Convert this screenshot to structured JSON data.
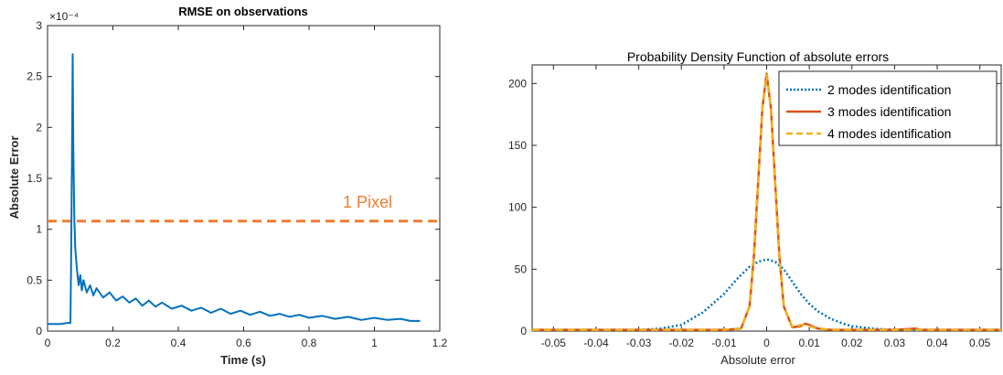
{
  "chart_data": [
    {
      "type": "line",
      "title": "RMSE on observations",
      "xlabel": "Time (s)",
      "ylabel": "Absolute Error",
      "y_exponent_label": "×10⁻⁴",
      "xlim": [
        0,
        1.2
      ],
      "ylim": [
        0,
        3
      ],
      "x_ticks": [
        "0",
        "0.2",
        "0.4",
        "0.6",
        "0.8",
        "1",
        "1.2"
      ],
      "y_ticks": [
        "0",
        "0.5",
        "1",
        "1.5",
        "2",
        "2.5",
        "3"
      ],
      "grid": false,
      "series": [
        {
          "color": "#0072bd",
          "style": "solid",
          "points": [
            [
              0.0,
              0.07
            ],
            [
              0.02,
              0.07
            ],
            [
              0.04,
              0.07
            ],
            [
              0.06,
              0.08
            ],
            [
              0.07,
              0.08
            ],
            [
              0.072,
              0.6
            ],
            [
              0.075,
              1.8
            ],
            [
              0.077,
              2.72
            ],
            [
              0.079,
              1.8
            ],
            [
              0.082,
              1.1
            ],
            [
              0.085,
              0.8
            ],
            [
              0.09,
              0.6
            ],
            [
              0.095,
              0.45
            ],
            [
              0.1,
              0.55
            ],
            [
              0.105,
              0.4
            ],
            [
              0.11,
              0.5
            ],
            [
              0.12,
              0.38
            ],
            [
              0.13,
              0.45
            ],
            [
              0.14,
              0.35
            ],
            [
              0.15,
              0.42
            ],
            [
              0.17,
              0.33
            ],
            [
              0.19,
              0.38
            ],
            [
              0.21,
              0.3
            ],
            [
              0.23,
              0.34
            ],
            [
              0.25,
              0.28
            ],
            [
              0.27,
              0.32
            ],
            [
              0.29,
              0.25
            ],
            [
              0.31,
              0.3
            ],
            [
              0.33,
              0.24
            ],
            [
              0.35,
              0.28
            ],
            [
              0.38,
              0.22
            ],
            [
              0.41,
              0.25
            ],
            [
              0.44,
              0.2
            ],
            [
              0.47,
              0.23
            ],
            [
              0.5,
              0.18
            ],
            [
              0.53,
              0.22
            ],
            [
              0.56,
              0.17
            ],
            [
              0.59,
              0.2
            ],
            [
              0.62,
              0.16
            ],
            [
              0.65,
              0.19
            ],
            [
              0.68,
              0.15
            ],
            [
              0.71,
              0.17
            ],
            [
              0.74,
              0.14
            ],
            [
              0.77,
              0.16
            ],
            [
              0.8,
              0.13
            ],
            [
              0.84,
              0.15
            ],
            [
              0.88,
              0.12
            ],
            [
              0.92,
              0.14
            ],
            [
              0.96,
              0.11
            ],
            [
              1.0,
              0.13
            ],
            [
              1.04,
              0.11
            ],
            [
              1.08,
              0.12
            ],
            [
              1.11,
              0.1
            ],
            [
              1.14,
              0.1
            ]
          ]
        }
      ],
      "reference_line": {
        "y": 1.08,
        "label": "1 Pixel",
        "color": "#ed7d31",
        "style": "dashed"
      }
    },
    {
      "type": "line",
      "title": "Probability Density Function of absolute errors",
      "xlabel": "Absolute error",
      "ylabel": "",
      "xlim": [
        -0.055,
        0.055
      ],
      "ylim": [
        0,
        215
      ],
      "x_ticks": [
        "-0.05",
        "-0.04",
        "-0.03",
        "-0.02",
        "-0.01",
        "0",
        "0.01",
        "0.02",
        "0.03",
        "0.04",
        "0.05"
      ],
      "y_ticks": [
        "0",
        "50",
        "100",
        "150",
        "200"
      ],
      "grid": false,
      "legend": "top-right",
      "series": [
        {
          "name": "2 modes identification",
          "color": "#0072bd",
          "style": "dotted",
          "points": [
            [
              -0.055,
              1
            ],
            [
              -0.03,
              1
            ],
            [
              -0.025,
              2
            ],
            [
              -0.02,
              5
            ],
            [
              -0.015,
              15
            ],
            [
              -0.01,
              30
            ],
            [
              -0.007,
              42
            ],
            [
              -0.004,
              52
            ],
            [
              -0.002,
              56
            ],
            [
              0.0,
              58
            ],
            [
              0.002,
              56
            ],
            [
              0.004,
              50
            ],
            [
              0.006,
              40
            ],
            [
              0.008,
              30
            ],
            [
              0.01,
              22
            ],
            [
              0.012,
              16
            ],
            [
              0.015,
              10
            ],
            [
              0.018,
              6
            ],
            [
              0.02,
              4
            ],
            [
              0.025,
              2
            ],
            [
              0.03,
              1
            ],
            [
              0.035,
              1
            ],
            [
              0.04,
              1
            ],
            [
              0.05,
              1
            ],
            [
              0.055,
              1
            ]
          ]
        },
        {
          "name": "3 modes identification",
          "color": "#d95319",
          "style": "solid",
          "points": [
            [
              -0.055,
              1
            ],
            [
              -0.01,
              1
            ],
            [
              -0.006,
              2
            ],
            [
              -0.004,
              20
            ],
            [
              -0.003,
              60
            ],
            [
              -0.002,
              120
            ],
            [
              -0.001,
              180
            ],
            [
              0.0,
              208
            ],
            [
              0.001,
              180
            ],
            [
              0.002,
              120
            ],
            [
              0.003,
              60
            ],
            [
              0.004,
              20
            ],
            [
              0.006,
              3
            ],
            [
              0.008,
              4
            ],
            [
              0.009,
              6
            ],
            [
              0.01,
              5
            ],
            [
              0.012,
              2
            ],
            [
              0.015,
              1
            ],
            [
              0.03,
              1
            ],
            [
              0.035,
              2
            ],
            [
              0.036,
              1
            ],
            [
              0.055,
              1
            ]
          ]
        },
        {
          "name": "4 modes identification",
          "color": "#edb120",
          "style": "dashed",
          "points": [
            [
              -0.055,
              1
            ],
            [
              -0.01,
              1
            ],
            [
              -0.006,
              2
            ],
            [
              -0.004,
              20
            ],
            [
              -0.003,
              60
            ],
            [
              -0.002,
              120
            ],
            [
              -0.001,
              180
            ],
            [
              0.0,
              207
            ],
            [
              0.001,
              180
            ],
            [
              0.002,
              120
            ],
            [
              0.003,
              60
            ],
            [
              0.004,
              20
            ],
            [
              0.006,
              3
            ],
            [
              0.008,
              5
            ],
            [
              0.009,
              5
            ],
            [
              0.01,
              4
            ],
            [
              0.012,
              2
            ],
            [
              0.015,
              1
            ],
            [
              0.03,
              1
            ],
            [
              0.055,
              1
            ]
          ]
        }
      ]
    }
  ]
}
